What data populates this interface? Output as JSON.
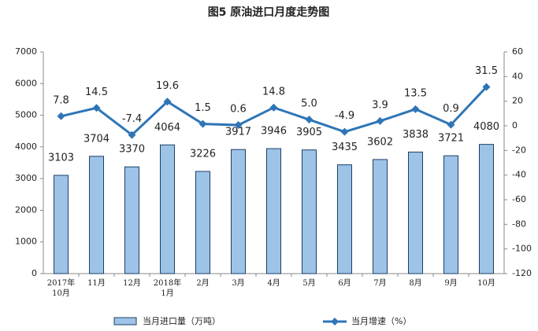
{
  "chart_data": {
    "type": "bar_line",
    "title": "图5  原油进口月度走势图",
    "categories": [
      "2017年\n10月",
      "11月",
      "12月",
      "2018年\n1月",
      "2月",
      "3月",
      "4月",
      "5月",
      "6月",
      "7月",
      "8月",
      "9月",
      "10月"
    ],
    "series": [
      {
        "name": "当月进口量（万吨）",
        "type": "bar",
        "color": "#9dc3e6",
        "values": [
          3103,
          3704,
          3370,
          4064,
          3226,
          3917,
          3946,
          3905,
          3435,
          3602,
          3838,
          3721,
          4080
        ]
      },
      {
        "name": "当月增速（%）",
        "type": "line",
        "axis": "y2",
        "color": "#2e75b6",
        "values": [
          7.8,
          14.5,
          -7.4,
          19.6,
          1.5,
          0.6,
          14.8,
          5.0,
          -4.9,
          3.9,
          13.5,
          0.9,
          31.5
        ],
        "value_labels": [
          "7.8",
          "14.5",
          "-7.4",
          "19.6",
          "1.5",
          "0.6",
          "14.8",
          "5.0",
          "-4.9",
          "3.9",
          "13.5",
          "0.9",
          "31.5"
        ]
      }
    ],
    "ylim": [
      0,
      7000
    ],
    "yticks": [
      0,
      1000,
      2000,
      3000,
      4000,
      5000,
      6000,
      7000
    ],
    "y2lim": [
      -120,
      60
    ],
    "y2ticks": [
      -120,
      -100,
      -80,
      -60,
      -40,
      -20,
      0,
      20,
      40,
      60
    ]
  }
}
